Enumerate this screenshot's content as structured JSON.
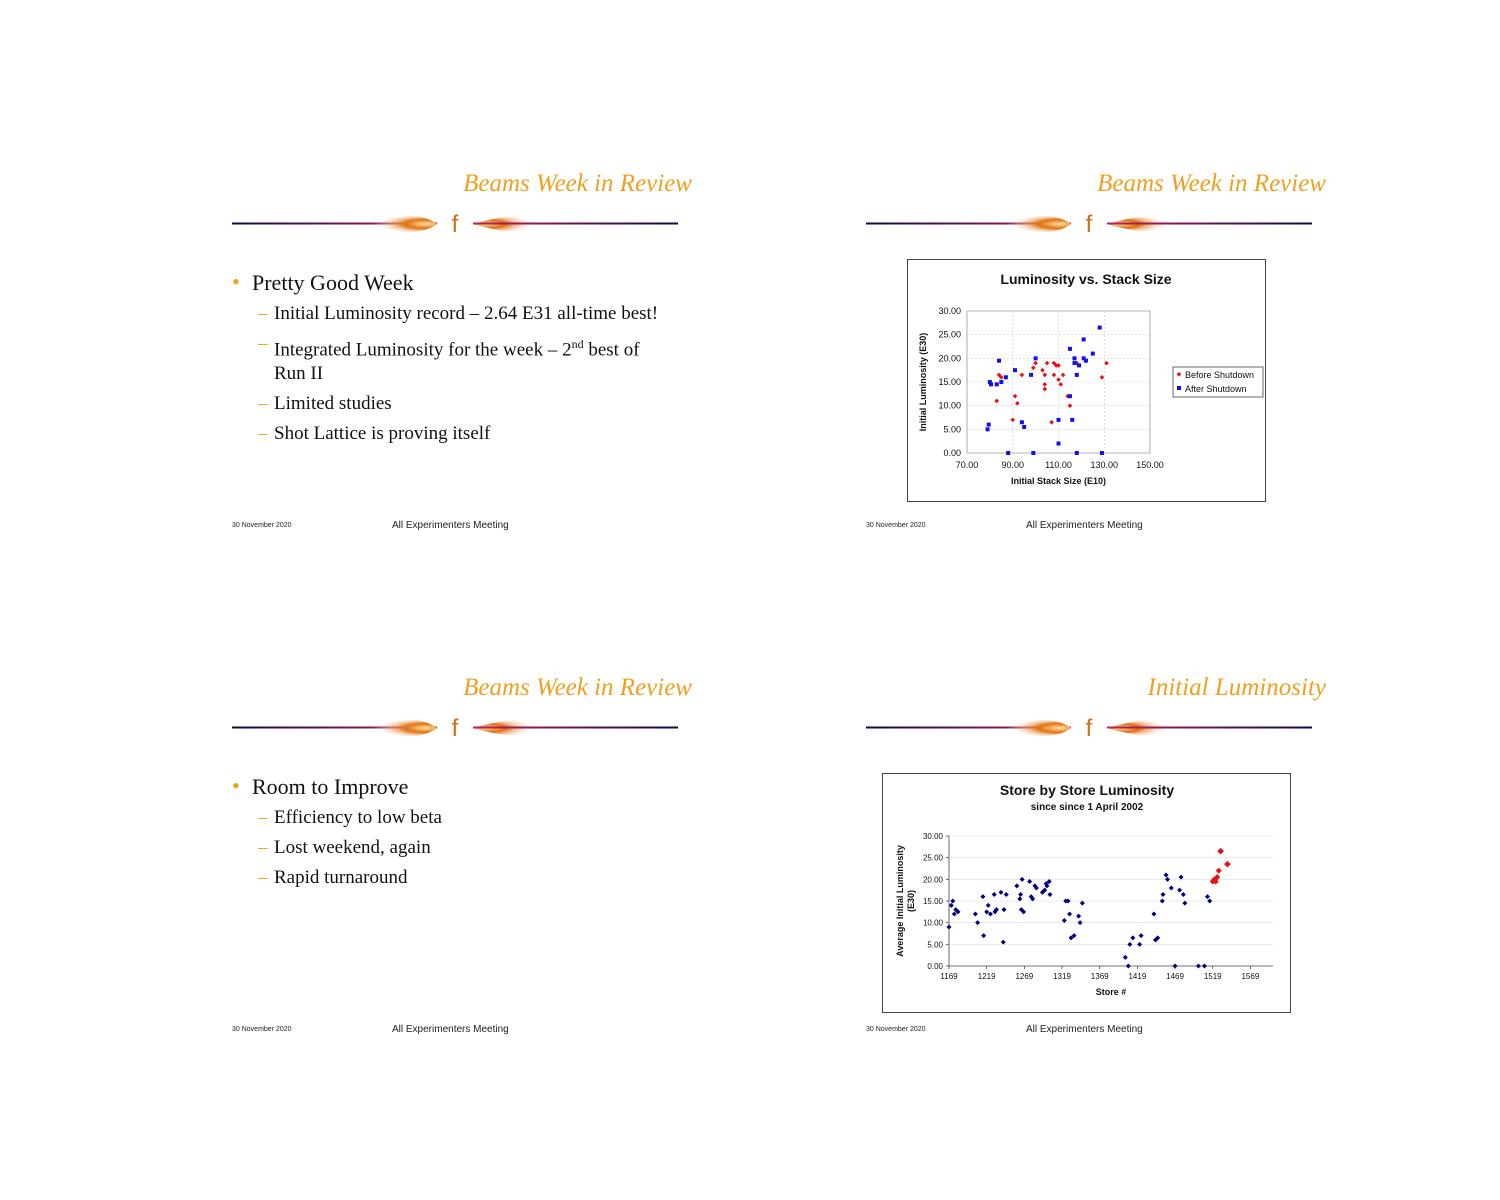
{
  "slides": [
    {
      "title": "Beams Week in Review",
      "logo": "f",
      "bullet": "Pretty Good Week",
      "subs": [
        {
          "text": "Initial Luminosity record – 2.64 E31 all-time best!"
        },
        {
          "pre": "Integrated Luminosity for the week – 2",
          "sup": "nd",
          "post": " best of Run II"
        },
        {
          "text": "Limited studies"
        },
        {
          "text": "Shot Lattice is proving itself"
        }
      ],
      "footer_date": "30 November 2020",
      "footer_meeting": "All Experimenters Meeting"
    },
    {
      "title": "Beams Week in Review",
      "logo": "f",
      "footer_date": "30 November 2020",
      "footer_meeting": "All Experimenters Meeting"
    },
    {
      "title": "Beams Week in Review",
      "logo": "f",
      "bullet": "Room to Improve",
      "subs": [
        {
          "text": "Efficiency to low beta"
        },
        {
          "text": "Lost weekend, again"
        },
        {
          "text": "Rapid turnaround"
        }
      ],
      "footer_date": "30 November 2020",
      "footer_meeting": "All Experimenters Meeting"
    },
    {
      "title": "Initial Luminosity",
      "logo": "f",
      "footer_date": "30 November 2020",
      "footer_meeting": "All Experimenters Meeting"
    }
  ],
  "colors": {
    "title": "#f0a020",
    "before": "#e81010",
    "after": "#1010ee",
    "store": "#000080",
    "recent": "#e81010"
  },
  "chart_data": [
    {
      "type": "scatter",
      "title": "Luminosity vs. Stack Size",
      "xlabel": "Initial Stack Size (E10)",
      "ylabel": "Initial Luminosity (E30)",
      "xlim": [
        70,
        150
      ],
      "ylim": [
        0,
        30
      ],
      "xticks": [
        "70.00",
        "90.00",
        "110.00",
        "130.00",
        "150.00"
      ],
      "yticks": [
        "0.00",
        "5.00",
        "10.00",
        "15.00",
        "20.00",
        "25.00",
        "30.00"
      ],
      "grid": true,
      "legend": "right",
      "series": [
        {
          "name": "Before Shutdown",
          "points": [
            [
              83,
              11
            ],
            [
              84,
              16.5
            ],
            [
              85,
              16
            ],
            [
              90,
              7
            ],
            [
              91,
              12
            ],
            [
              92,
              10.5
            ],
            [
              94,
              16.5
            ],
            [
              99,
              18
            ],
            [
              100,
              19
            ],
            [
              103,
              17.5
            ],
            [
              104,
              14.5
            ],
            [
              104,
              13.5
            ],
            [
              104,
              16.5
            ],
            [
              105,
              19
            ],
            [
              107,
              6.5
            ],
            [
              108,
              19
            ],
            [
              108,
              16.5
            ],
            [
              109,
              18.5
            ],
            [
              110,
              15.5
            ],
            [
              110,
              18.5
            ],
            [
              111,
              14.5
            ],
            [
              112,
              16.5
            ],
            [
              114,
              12
            ],
            [
              115,
              10
            ],
            [
              118,
              19
            ],
            [
              129,
              16
            ],
            [
              131,
              19
            ]
          ]
        },
        {
          "name": "After Shutdown",
          "points": [
            [
              79,
              5
            ],
            [
              79.5,
              6
            ],
            [
              80,
              15
            ],
            [
              80.5,
              14.5
            ],
            [
              83,
              14.5
            ],
            [
              84,
              19.5
            ],
            [
              85,
              15
            ],
            [
              87,
              16
            ],
            [
              88,
              0
            ],
            [
              91,
              17.5
            ],
            [
              94,
              6.5
            ],
            [
              95,
              5.5
            ],
            [
              98,
              16.5
            ],
            [
              99,
              0
            ],
            [
              100,
              20
            ],
            [
              110,
              7
            ],
            [
              110,
              2
            ],
            [
              115,
              22
            ],
            [
              115,
              12
            ],
            [
              116,
              7
            ],
            [
              117,
              20
            ],
            [
              117,
              19
            ],
            [
              118,
              16.5
            ],
            [
              118,
              0
            ],
            [
              119,
              18.5
            ],
            [
              121,
              24
            ],
            [
              121,
              20
            ],
            [
              122,
              19.5
            ],
            [
              125,
              21
            ],
            [
              128,
              26.5
            ],
            [
              129,
              0
            ]
          ]
        }
      ]
    },
    {
      "type": "scatter",
      "title": "Store by Store Luminosity",
      "subtitle": "since since 1 April 2002",
      "xlabel": "Store #",
      "ylabel": "Average Initial Luminosity (E30)",
      "xlim": [
        1169,
        1599
      ],
      "ylim": [
        0,
        30
      ],
      "xticks": [
        "1169",
        "1219",
        "1269",
        "1319",
        "1369",
        "1419",
        "1469",
        "1519",
        "1569"
      ],
      "yticks": [
        "0.00",
        "5.00",
        "10.00",
        "15.00",
        "20.00",
        "25.00",
        "30.00"
      ],
      "series": [
        {
          "name": "stores",
          "points": [
            [
              1169,
              9
            ],
            [
              1172,
              14
            ],
            [
              1174,
              15
            ],
            [
              1176,
              12
            ],
            [
              1178,
              13
            ],
            [
              1181,
              12.5
            ],
            [
              1204,
              12
            ],
            [
              1207,
              10
            ],
            [
              1214,
              16
            ],
            [
              1215,
              7
            ],
            [
              1219,
              12.5
            ],
            [
              1221,
              14
            ],
            [
              1224,
              12
            ],
            [
              1229,
              16.5
            ],
            [
              1230,
              12.5
            ],
            [
              1232,
              13
            ],
            [
              1238,
              17
            ],
            [
              1241,
              5.5
            ],
            [
              1242,
              13
            ],
            [
              1245,
              16.5
            ],
            [
              1259,
              18.5
            ],
            [
              1263,
              15.5
            ],
            [
              1264,
              16.5
            ],
            [
              1265,
              13
            ],
            [
              1266,
              20
            ],
            [
              1268,
              12.5
            ],
            [
              1276,
              19.5
            ],
            [
              1278,
              16
            ],
            [
              1280,
              15.5
            ],
            [
              1283,
              18.5
            ],
            [
              1285,
              18
            ],
            [
              1293,
              17
            ],
            [
              1296,
              17.5
            ],
            [
              1298,
              19
            ],
            [
              1299,
              18.5
            ],
            [
              1302,
              19.5
            ],
            [
              1303,
              16.5
            ],
            [
              1322,
              10.5
            ],
            [
              1324,
              15
            ],
            [
              1327,
              15
            ],
            [
              1329,
              12
            ],
            [
              1331,
              6.5
            ],
            [
              1335,
              7
            ],
            [
              1341,
              11.5
            ],
            [
              1343,
              10
            ],
            [
              1346,
              14.5
            ],
            [
              1403,
              2
            ],
            [
              1407,
              0
            ],
            [
              1409,
              5
            ],
            [
              1413,
              6.5
            ],
            [
              1422,
              5
            ],
            [
              1424,
              7
            ],
            [
              1441,
              12
            ],
            [
              1443,
              6
            ],
            [
              1446,
              6.5
            ],
            [
              1452,
              15
            ],
            [
              1453,
              16.5
            ],
            [
              1457,
              21
            ],
            [
              1459,
              20
            ],
            [
              1464,
              18
            ],
            [
              1469,
              0
            ],
            [
              1475,
              17.5
            ],
            [
              1477,
              20.5
            ],
            [
              1480,
              16.5
            ],
            [
              1482,
              14.5
            ],
            [
              1500,
              0
            ],
            [
              1508,
              0
            ],
            [
              1512,
              16
            ],
            [
              1515,
              15
            ]
          ]
        },
        {
          "name": "recent",
          "points": [
            [
              1519,
              19.5
            ],
            [
              1521,
              20
            ],
            [
              1523,
              19.5
            ],
            [
              1525,
              20.5
            ],
            [
              1527,
              22
            ],
            [
              1529,
              26.5
            ],
            [
              1530,
              26.5
            ],
            [
              1538,
              23.5
            ],
            [
              1539,
              23.5
            ]
          ]
        }
      ]
    }
  ]
}
